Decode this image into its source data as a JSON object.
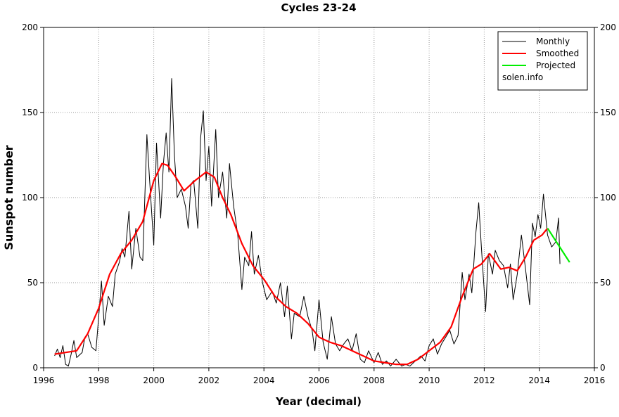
{
  "chart_data": {
    "type": "line",
    "title": "Cycles 23-24",
    "x_label": "Year (decimal)",
    "y_label": "Sunspot number",
    "xlim": [
      1996,
      2016
    ],
    "xticks": [
      1996,
      1998,
      2000,
      2002,
      2004,
      2006,
      2008,
      2010,
      2012,
      2014,
      2016
    ],
    "ylim": [
      0,
      200
    ],
    "yticks": [
      0,
      50,
      100,
      150,
      200
    ],
    "y2lim": [
      0,
      200
    ],
    "y2ticks": [
      0,
      50,
      100,
      150,
      200
    ],
    "grid": true,
    "legend_position": "upper right",
    "legend_note": "solen.info",
    "series": [
      {
        "name": "Monthly",
        "color": "#000000",
        "x": [
          1996.4,
          1996.5,
          1996.6,
          1996.7,
          1996.8,
          1996.9,
          1997.0,
          1997.1,
          1997.2,
          1997.4,
          1997.5,
          1997.6,
          1997.75,
          1997.9,
          1998.0,
          1998.1,
          1998.2,
          1998.35,
          1998.5,
          1998.6,
          1998.75,
          1998.85,
          1998.95,
          1999.1,
          1999.2,
          1999.35,
          1999.5,
          1999.6,
          1999.75,
          1999.85,
          2000.0,
          2000.1,
          2000.25,
          2000.35,
          2000.45,
          2000.55,
          2000.65,
          2000.75,
          2000.85,
          2001.0,
          2001.15,
          2001.25,
          2001.35,
          2001.45,
          2001.6,
          2001.7,
          2001.8,
          2001.9,
          2002.0,
          2002.1,
          2002.25,
          2002.35,
          2002.5,
          2002.65,
          2002.75,
          2002.9,
          2003.05,
          2003.2,
          2003.3,
          2003.45,
          2003.55,
          2003.65,
          2003.8,
          2003.95,
          2004.1,
          2004.3,
          2004.45,
          2004.6,
          2004.75,
          2004.85,
          2005.0,
          2005.1,
          2005.3,
          2005.45,
          2005.6,
          2005.75,
          2005.85,
          2006.0,
          2006.15,
          2006.3,
          2006.45,
          2006.6,
          2006.75,
          2006.9,
          2007.05,
          2007.2,
          2007.35,
          2007.5,
          2007.65,
          2007.8,
          2008.0,
          2008.15,
          2008.3,
          2008.45,
          2008.6,
          2008.8,
          2009.0,
          2009.15,
          2009.3,
          2009.5,
          2009.7,
          2009.85,
          2010.0,
          2010.15,
          2010.3,
          2010.45,
          2010.6,
          2010.75,
          2010.9,
          2011.05,
          2011.2,
          2011.3,
          2011.45,
          2011.55,
          2011.7,
          2011.8,
          2011.9,
          2012.05,
          2012.15,
          2012.3,
          2012.4,
          2012.55,
          2012.7,
          2012.85,
          2012.95,
          2013.05,
          2013.2,
          2013.35,
          2013.5,
          2013.65,
          2013.75,
          2013.85,
          2013.95,
          2014.05,
          2014.15,
          2014.3,
          2014.45,
          2014.6,
          2014.7,
          2014.75
        ],
        "values": [
          7,
          11,
          6,
          13,
          2,
          1,
          8,
          16,
          6,
          9,
          18,
          20,
          12,
          10,
          30,
          51,
          25,
          42,
          36,
          55,
          62,
          70,
          65,
          92,
          58,
          82,
          65,
          63,
          137,
          110,
          72,
          132,
          88,
          120,
          138,
          115,
          170,
          125,
          100,
          105,
          95,
          82,
          108,
          110,
          82,
          135,
          151,
          110,
          130,
          95,
          140,
          100,
          115,
          88,
          120,
          95,
          78,
          46,
          65,
          60,
          80,
          55,
          66,
          50,
          40,
          45,
          38,
          50,
          30,
          48,
          17,
          32,
          30,
          42,
          30,
          22,
          10,
          40,
          15,
          5,
          30,
          14,
          10,
          14,
          17,
          10,
          20,
          5,
          3,
          10,
          3,
          9,
          2,
          4,
          1,
          5,
          1,
          2,
          1,
          4,
          7,
          4,
          13,
          17,
          8,
          14,
          18,
          22,
          14,
          19,
          56,
          40,
          55,
          44,
          80,
          97,
          70,
          33,
          67,
          55,
          69,
          63,
          60,
          47,
          61,
          40,
          55,
          78,
          58,
          37,
          85,
          77,
          90,
          82,
          102,
          78,
          71,
          74,
          88,
          61
        ]
      },
      {
        "name": "Smoothed",
        "color": "#ff0000",
        "x": [
          1996.4,
          1996.8,
          1997.2,
          1997.6,
          1998.0,
          1998.4,
          1998.8,
          1999.2,
          1999.6,
          2000.0,
          2000.3,
          2000.5,
          2000.8,
          2001.1,
          2001.5,
          2001.9,
          2002.2,
          2002.5,
          2002.8,
          2003.2,
          2003.6,
          2004.0,
          2004.4,
          2004.8,
          2005.2,
          2005.6,
          2006.0,
          2006.4,
          2006.8,
          2007.2,
          2007.6,
          2008.0,
          2008.4,
          2008.8,
          2009.2,
          2009.6,
          2010.0,
          2010.4,
          2010.8,
          2011.2,
          2011.6,
          2011.9,
          2012.2,
          2012.6,
          2012.9,
          2013.2,
          2013.5,
          2013.8,
          2014.1,
          2014.3
        ],
        "values": [
          8,
          9,
          10,
          20,
          35,
          55,
          67,
          75,
          86,
          110,
          120,
          119,
          112,
          104,
          110,
          115,
          112,
          100,
          90,
          73,
          60,
          52,
          42,
          36,
          32,
          26,
          18,
          15,
          13,
          10,
          7,
          4,
          3,
          2,
          2,
          5,
          10,
          15,
          24,
          42,
          58,
          61,
          67,
          58,
          59,
          57,
          65,
          75,
          78,
          82
        ]
      },
      {
        "name": "Projected",
        "color": "#00ee00",
        "x": [
          2014.3,
          2014.7,
          2015.1
        ],
        "values": [
          82,
          72,
          62
        ]
      }
    ]
  }
}
